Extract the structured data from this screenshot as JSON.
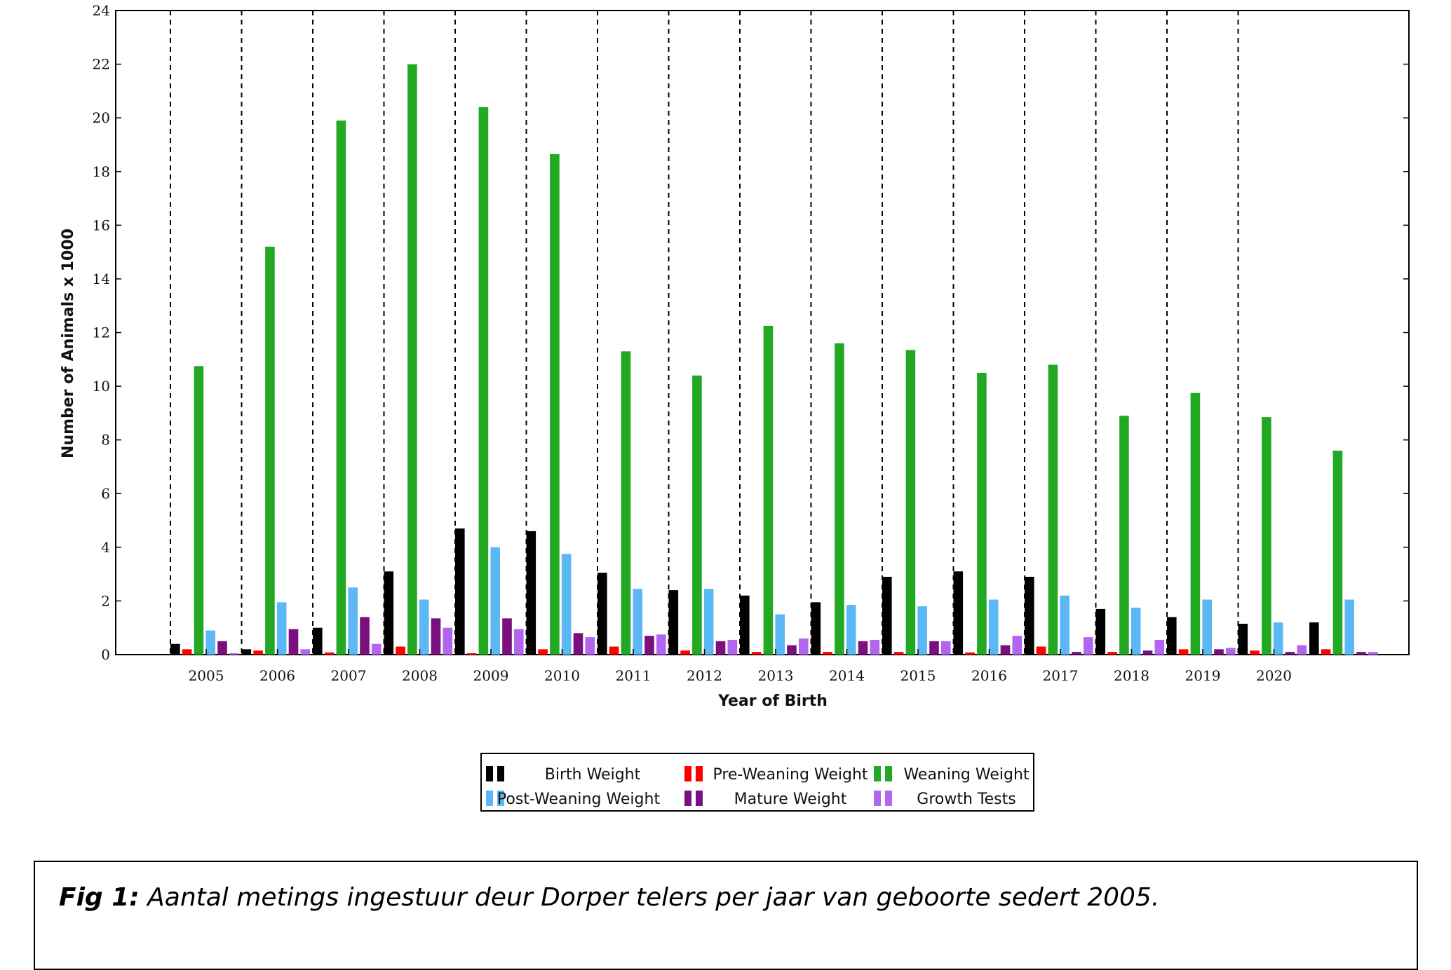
{
  "chart_data": {
    "type": "bar",
    "title": "",
    "xlabel": "Year of Birth",
    "ylabel": "Number of Animals x 1000",
    "ylim": [
      0,
      24
    ],
    "yticks": [
      0,
      2,
      4,
      6,
      8,
      10,
      12,
      14,
      16,
      18,
      20,
      22,
      24
    ],
    "categories": [
      "2005",
      "2006",
      "2007",
      "2008",
      "2009",
      "2010",
      "2011",
      "2012",
      "2013",
      "2014",
      "2015",
      "2016",
      "2017",
      "2018",
      "2019",
      "2020",
      ""
    ],
    "grid": "vertical dashed separators between years",
    "legend_position": "bottom-center",
    "series": [
      {
        "name": "Birth Weight",
        "color": "#000000",
        "values": [
          0.4,
          0.2,
          1.0,
          3.1,
          4.7,
          4.6,
          3.05,
          2.4,
          2.2,
          1.95,
          2.9,
          3.1,
          2.9,
          1.7,
          1.4,
          1.15,
          1.2
        ]
      },
      {
        "name": "Pre-Weaning Weight",
        "color": "#ff0000",
        "values": [
          0.2,
          0.15,
          0.08,
          0.3,
          0.05,
          0.2,
          0.3,
          0.15,
          0.1,
          0.1,
          0.1,
          0.08,
          0.3,
          0.1,
          0.2,
          0.15,
          0.2
        ]
      },
      {
        "name": "Weaning Weight",
        "color": "#22a822",
        "values": [
          10.75,
          15.2,
          19.9,
          22.0,
          20.4,
          18.65,
          11.3,
          10.4,
          12.25,
          11.6,
          11.35,
          10.5,
          10.8,
          8.9,
          9.75,
          8.85,
          7.6
        ]
      },
      {
        "name": "Post-Weaning Weight",
        "color": "#5bb8f5",
        "values": [
          0.9,
          1.95,
          2.5,
          2.05,
          4.0,
          3.75,
          2.45,
          2.45,
          1.5,
          1.85,
          1.8,
          2.05,
          2.2,
          1.75,
          2.05,
          1.2,
          2.05
        ]
      },
      {
        "name": "Mature Weight",
        "color": "#7a0f80",
        "values": [
          0.5,
          0.95,
          1.4,
          1.35,
          1.35,
          0.8,
          0.7,
          0.5,
          0.35,
          0.5,
          0.5,
          0.35,
          0.1,
          0.15,
          0.2,
          0.1,
          0.1
        ]
      },
      {
        "name": "Growth Tests",
        "color": "#b266f0",
        "values": [
          0.05,
          0.2,
          0.4,
          1.0,
          0.95,
          0.65,
          0.75,
          0.55,
          0.6,
          0.55,
          0.5,
          0.7,
          0.65,
          0.55,
          0.25,
          0.35,
          0.1
        ]
      }
    ]
  },
  "caption": {
    "prefix": "Fig 1:",
    "text": " Aantal metings ingestuur deur Dorper telers per jaar van geboorte sedert 2005."
  }
}
